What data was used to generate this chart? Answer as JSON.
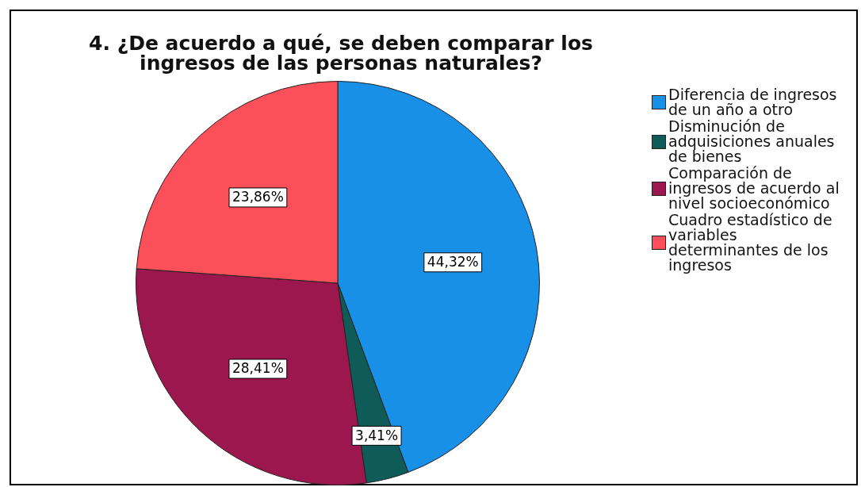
{
  "chart_data": {
    "type": "pie",
    "title": "4. ¿De acuerdo a qué, se deben comparar los ingresos de las personas naturales?",
    "categories": [
      "Diferencia de ingresos de un año a otro",
      "Disminución de adquisiciones anuales de bienes",
      "Comparación de ingresos de acuerdo al nivel socioeconómico",
      "Cuadro estadístico de variables determinantes de los ingresos"
    ],
    "values": [
      44.32,
      3.41,
      28.41,
      23.86
    ],
    "colors": [
      "#1990e8",
      "#0e5b58",
      "#9c174e",
      "#fb505a"
    ],
    "value_labels": [
      "44,32%",
      "3,41%",
      "28,41%",
      "23,86%"
    ],
    "legend": "right"
  }
}
